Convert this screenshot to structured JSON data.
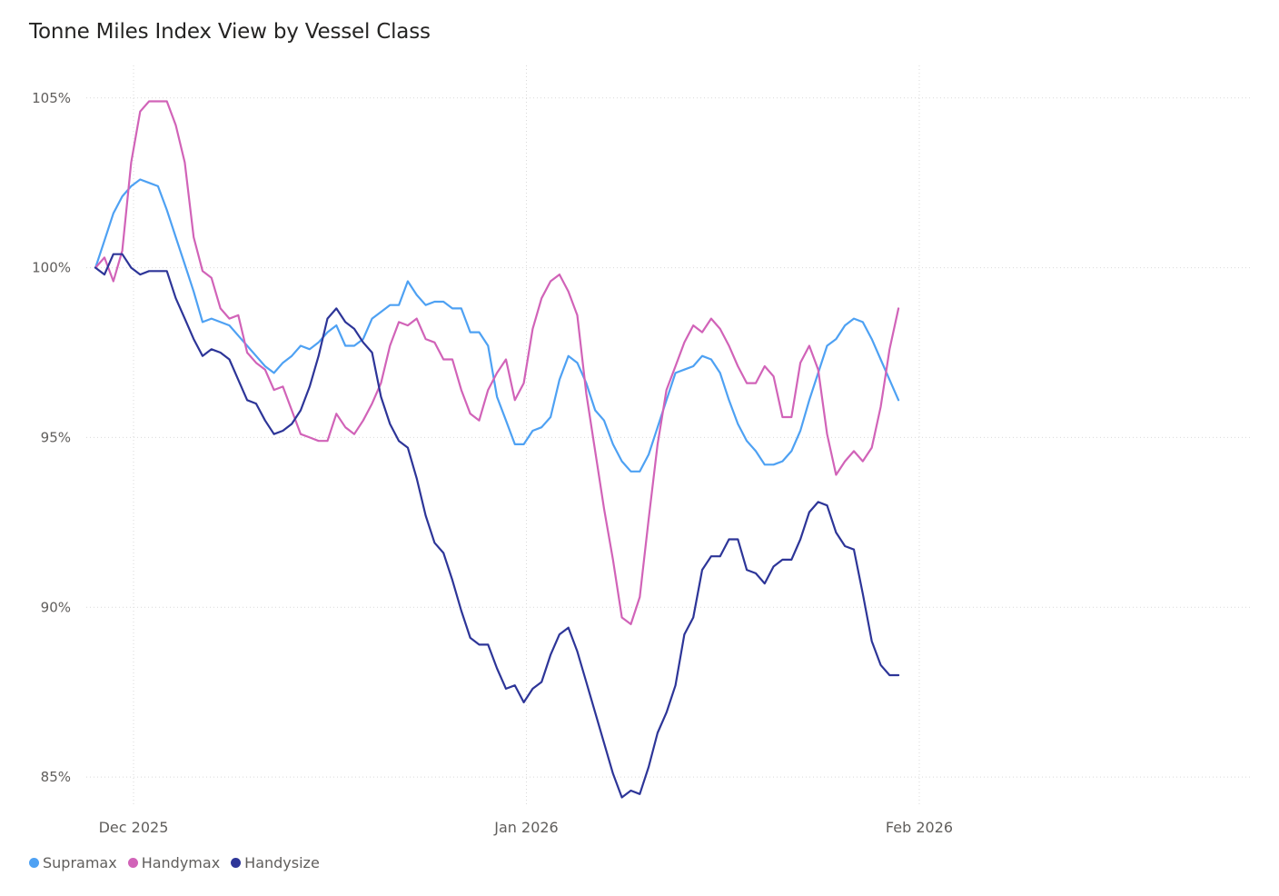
{
  "chart_data": {
    "type": "line",
    "title": "Tonne Miles Index View by Vessel Class",
    "xlabel": "",
    "ylabel": "",
    "ylim": [
      84,
      106
    ],
    "x_range_days": [
      -3,
      85
    ],
    "y_ticks": [
      {
        "value": 85,
        "label": "85%"
      },
      {
        "value": 90,
        "label": "90%"
      },
      {
        "value": 95,
        "label": "95%"
      },
      {
        "value": 100,
        "label": "100%"
      },
      {
        "value": 105,
        "label": "105%"
      }
    ],
    "x_ticks": [
      {
        "day": 0,
        "label": "Dec 2025"
      },
      {
        "day": 31,
        "label": "Jan 2026"
      },
      {
        "day": 62,
        "label": "Feb 2026"
      }
    ],
    "x_start_day": -3,
    "x_step_days": 0.704,
    "legend_position": "bottom-left",
    "series": [
      {
        "name": "Supramax",
        "color": "#4ea1f3",
        "values": [
          100.0,
          100.8,
          101.6,
          102.1,
          102.4,
          102.6,
          102.5,
          102.4,
          101.7,
          100.9,
          100.1,
          99.3,
          98.4,
          98.5,
          98.4,
          98.3,
          98.0,
          97.7,
          97.4,
          97.1,
          96.9,
          97.2,
          97.4,
          97.7,
          97.6,
          97.8,
          98.1,
          98.3,
          97.7,
          97.7,
          97.9,
          98.5,
          98.7,
          98.9,
          98.9,
          99.6,
          99.2,
          98.9,
          99.0,
          99.0,
          98.8,
          98.8,
          98.1,
          98.1,
          97.7,
          96.2,
          95.5,
          94.8,
          94.8,
          95.2,
          95.3,
          95.6,
          96.7,
          97.4,
          97.2,
          96.6,
          95.8,
          95.5,
          94.8,
          94.3,
          94.0,
          94.0,
          94.5,
          95.3,
          96.1,
          96.9,
          97.0,
          97.1,
          97.4,
          97.3,
          96.9,
          96.1,
          95.4,
          94.9,
          94.6,
          94.2,
          94.2,
          94.3,
          94.6,
          95.2,
          96.1,
          96.9,
          97.7,
          97.9,
          98.3,
          98.5,
          98.4,
          97.9,
          97.3,
          96.7,
          96.1
        ]
      },
      {
        "name": "Handymax",
        "color": "#d163b8",
        "values": [
          100.0,
          100.3,
          99.6,
          100.5,
          103.1,
          104.6,
          104.9,
          104.9,
          104.9,
          104.2,
          103.1,
          100.9,
          99.9,
          99.7,
          98.8,
          98.5,
          98.6,
          97.5,
          97.2,
          97.0,
          96.4,
          96.5,
          95.8,
          95.1,
          95.0,
          94.9,
          94.9,
          95.7,
          95.3,
          95.1,
          95.5,
          96.0,
          96.6,
          97.7,
          98.4,
          98.3,
          98.5,
          97.9,
          97.8,
          97.3,
          97.3,
          96.4,
          95.7,
          95.5,
          96.4,
          96.9,
          97.3,
          96.1,
          96.6,
          98.2,
          99.1,
          99.6,
          99.8,
          99.3,
          98.6,
          96.3,
          94.6,
          92.9,
          91.4,
          89.7,
          89.5,
          90.3,
          92.6,
          94.8,
          96.4,
          97.1,
          97.8,
          98.3,
          98.1,
          98.5,
          98.2,
          97.7,
          97.1,
          96.6,
          96.6,
          97.1,
          96.8,
          95.6,
          95.6,
          97.2,
          97.7,
          97.0,
          95.1,
          93.9,
          94.3,
          94.6,
          94.3,
          94.7,
          95.9,
          97.6,
          98.8
        ]
      },
      {
        "name": "Handysize",
        "color": "#2d3598",
        "values": [
          100.0,
          99.8,
          100.4,
          100.4,
          100.0,
          99.8,
          99.9,
          99.9,
          99.9,
          99.1,
          98.5,
          97.9,
          97.4,
          97.6,
          97.5,
          97.3,
          96.7,
          96.1,
          96.0,
          95.5,
          95.1,
          95.2,
          95.4,
          95.8,
          96.5,
          97.4,
          98.5,
          98.8,
          98.4,
          98.2,
          97.8,
          97.5,
          96.2,
          95.4,
          94.9,
          94.7,
          93.8,
          92.7,
          91.9,
          91.6,
          90.8,
          89.9,
          89.1,
          88.9,
          88.9,
          88.2,
          87.6,
          87.7,
          87.2,
          87.6,
          87.8,
          88.6,
          89.2,
          89.4,
          88.7,
          87.8,
          86.9,
          86.0,
          85.1,
          84.4,
          84.6,
          84.5,
          85.3,
          86.3,
          86.9,
          87.7,
          89.2,
          89.7,
          91.1,
          91.5,
          91.5,
          92.0,
          92.0,
          91.1,
          91.0,
          90.7,
          91.2,
          91.4,
          91.4,
          92.0,
          92.8,
          93.1,
          93.0,
          92.2,
          91.8,
          91.7,
          90.4,
          89.0,
          88.3,
          88.0,
          88.0
        ]
      }
    ]
  }
}
